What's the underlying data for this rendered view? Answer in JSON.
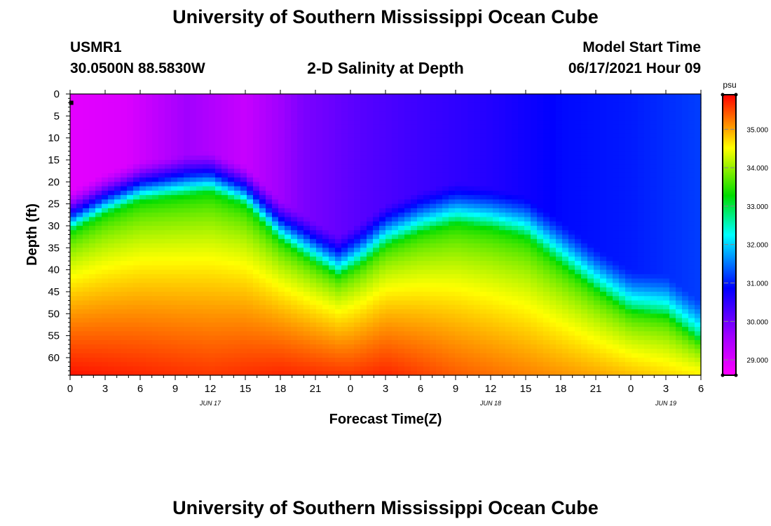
{
  "page": {
    "title_top": "University of Southern Mississippi Ocean Cube",
    "title_bottom": "University of Southern Mississippi Ocean Cube",
    "station_id": "USMR1",
    "coords": "30.0500N  88.5830W",
    "plot_title": "2-D Salinity at Depth",
    "model_label": "Model Start Time",
    "model_time": "06/17/2021 Hour 09"
  },
  "chart_data": {
    "type": "heatmap",
    "title": "2-D Salinity at Depth",
    "xlabel": "Forecast Time(Z)",
    "ylabel": "Depth (ft)",
    "x_unit": "forecast hours from 00Z Jun 17",
    "xlim": [
      0,
      54
    ],
    "ylim": [
      0,
      64
    ],
    "x_ticks": [
      0,
      3,
      6,
      9,
      12,
      15,
      18,
      21,
      24,
      27,
      30,
      33,
      36,
      39,
      42,
      45,
      48,
      51,
      54
    ],
    "x_tick_labels": [
      "0",
      "3",
      "6",
      "9",
      "12",
      "15",
      "18",
      "21",
      "0",
      "3",
      "6",
      "9",
      "12",
      "15",
      "18",
      "21",
      "0",
      "3",
      "6"
    ],
    "y_ticks": [
      0,
      5,
      10,
      15,
      20,
      25,
      30,
      35,
      40,
      45,
      50,
      55,
      60
    ],
    "date_labels": [
      {
        "x": 12,
        "text": "JUN 17"
      },
      {
        "x": 36,
        "text": "JUN 18"
      },
      {
        "x": 51,
        "text": "JUN 19"
      }
    ],
    "colorbar": {
      "unit": "psu",
      "range": [
        28.6,
        35.9
      ],
      "ticks": [
        29.0,
        30.0,
        31.0,
        32.0,
        33.0,
        34.0,
        35.0
      ],
      "tick_labels": [
        "29.000",
        "30.000",
        "31.000",
        "32.000",
        "33.000",
        "34.000",
        "35.000"
      ]
    },
    "surface_salinity": [
      {
        "x": 0,
        "v": 28.9
      },
      {
        "x": 5,
        "v": 29.0
      },
      {
        "x": 10,
        "v": 29.6
      },
      {
        "x": 15,
        "v": 29.2
      },
      {
        "x": 20,
        "v": 29.9
      },
      {
        "x": 25,
        "v": 30.2
      },
      {
        "x": 30,
        "v": 30.4
      },
      {
        "x": 36,
        "v": 30.6
      },
      {
        "x": 42,
        "v": 30.9
      },
      {
        "x": 48,
        "v": 31.0
      },
      {
        "x": 54,
        "v": 31.2
      }
    ],
    "halocline_33psu_depth_ft": [
      {
        "x": 0,
        "d": 31
      },
      {
        "x": 3,
        "d": 27
      },
      {
        "x": 6,
        "d": 24
      },
      {
        "x": 9,
        "d": 23
      },
      {
        "x": 12,
        "d": 22
      },
      {
        "x": 15,
        "d": 25
      },
      {
        "x": 18,
        "d": 33
      },
      {
        "x": 21,
        "d": 38
      },
      {
        "x": 23,
        "d": 41
      },
      {
        "x": 25,
        "d": 38
      },
      {
        "x": 27,
        "d": 34
      },
      {
        "x": 30,
        "d": 31
      },
      {
        "x": 33,
        "d": 29
      },
      {
        "x": 36,
        "d": 30
      },
      {
        "x": 39,
        "d": 32
      },
      {
        "x": 42,
        "d": 38
      },
      {
        "x": 45,
        "d": 44
      },
      {
        "x": 48,
        "d": 49
      },
      {
        "x": 51,
        "d": 50
      },
      {
        "x": 54,
        "d": 56
      }
    ],
    "bottom_salinity": [
      {
        "x": 0,
        "v": 35.8
      },
      {
        "x": 6,
        "v": 35.7
      },
      {
        "x": 12,
        "v": 35.6
      },
      {
        "x": 18,
        "v": 35.7
      },
      {
        "x": 24,
        "v": 35.6
      },
      {
        "x": 27,
        "v": 35.7
      },
      {
        "x": 33,
        "v": 35.4
      },
      {
        "x": 39,
        "v": 35.2
      },
      {
        "x": 45,
        "v": 35.0
      },
      {
        "x": 54,
        "v": 34.6
      }
    ],
    "markers": [
      {
        "x": 0.1,
        "d": 2
      }
    ]
  }
}
